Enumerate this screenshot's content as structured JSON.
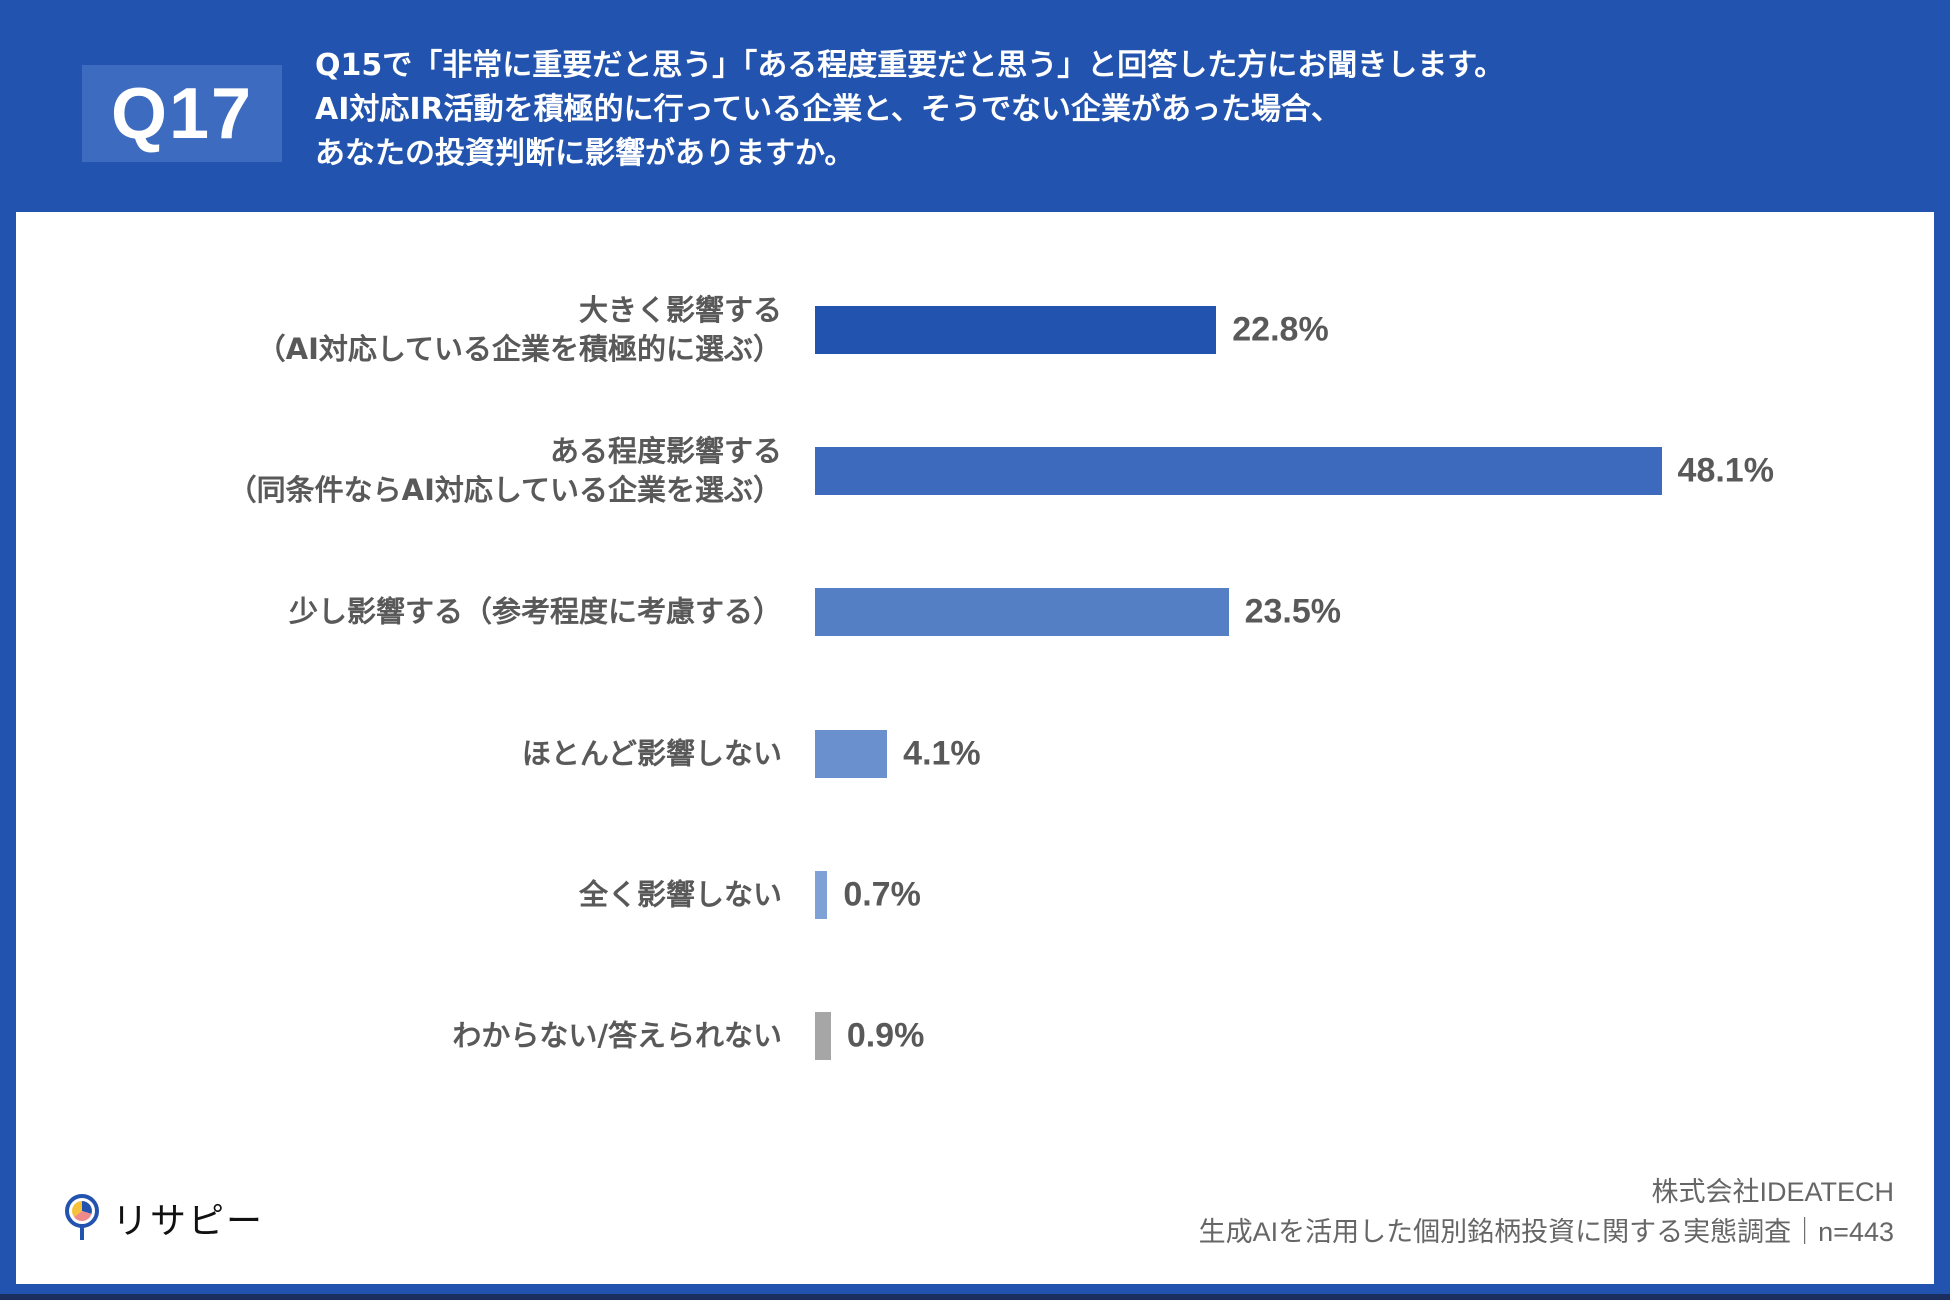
{
  "header": {
    "badge": "Q17",
    "title_lines": [
      "Q15で「非常に重要だと思う」「ある程度重要だと思う」と回答した方にお聞きします。",
      "AI対応IR活動を積極的に行っている企業と、そうでない企業があった場合、",
      "あなたの投資判断に影響がありますか。"
    ]
  },
  "colors": {
    "frame": "#2253AE",
    "badge": "#3C6BBF",
    "bar_1": "#2253AE",
    "bar_2": "#3D6ABD",
    "bar_3": "#557FC4",
    "bar_4": "#6A90CE",
    "bar_5": "#7EA1D6",
    "bar_6": "#A6A6A6",
    "text": "#595959"
  },
  "chart_data": {
    "type": "bar",
    "orientation": "horizontal",
    "title": "AI対応IR活動を積極的に行っている企業と、そうでない企業があった場合、あなたの投資判断に影響がありますか。",
    "categories": [
      "大きく影響する（AI対応している企業を積極的に選ぶ）",
      "ある程度影響する（同条件ならAI対応している企業を選ぶ）",
      "少し影響する（参考程度に考慮する）",
      "ほとんど影響しない",
      "全く影響しない",
      "わからない/答えられない"
    ],
    "values": [
      22.8,
      48.1,
      23.5,
      4.1,
      0.7,
      0.9
    ],
    "unit": "%",
    "xlabel": "",
    "ylabel": "",
    "xlim": [
      0,
      55
    ],
    "grid": false,
    "legend": null,
    "sample_size": "n=443"
  },
  "rows": [
    {
      "label_lines": [
        "大きく影響する",
        "（AI対応している企業を積極的に選ぶ）"
      ],
      "value_label": "22.8%"
    },
    {
      "label_lines": [
        "ある程度影響する",
        "（同条件ならAI対応している企業を選ぶ）"
      ],
      "value_label": "48.1%"
    },
    {
      "label_lines": [
        "少し影響する（参考程度に考慮する）"
      ],
      "value_label": "23.5%"
    },
    {
      "label_lines": [
        "ほとんど影響しない"
      ],
      "value_label": "4.1%"
    },
    {
      "label_lines": [
        "全く影響しない"
      ],
      "value_label": "0.7%"
    },
    {
      "label_lines": [
        "わからない/答えられない"
      ],
      "value_label": "0.9%"
    }
  ],
  "logo": {
    "text": "リサピー"
  },
  "footer": {
    "company": "株式会社IDEATECH",
    "survey": "生成AIを活用した個別銘柄投資に関する実態調査｜n=443"
  }
}
